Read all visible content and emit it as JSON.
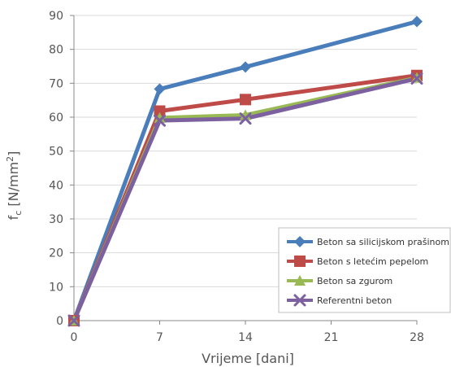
{
  "chart_data": {
    "type": "line",
    "xlabel": "Vrijeme [dani]",
    "ylabel": {
      "main": "f",
      "sub": "c",
      "unit": " [N/mm",
      "sup": "2",
      "close": "]"
    },
    "x": [
      0,
      7,
      14,
      28
    ],
    "xticks": [
      0,
      7,
      14,
      21,
      28
    ],
    "xlim": [
      0,
      28
    ],
    "yticks": [
      0,
      10,
      20,
      30,
      40,
      50,
      60,
      70,
      80,
      90
    ],
    "ylim": [
      0,
      90
    ],
    "grid": "horizontal",
    "legend_position": "bottom-right",
    "series": [
      {
        "name": "Beton sa silicijskom prašinom",
        "values": [
          0,
          68.3,
          74.8,
          88.2
        ],
        "color": "#4a7ebb",
        "marker": "diamond"
      },
      {
        "name": "Beton s letećim pepelom",
        "values": [
          0,
          61.8,
          65.2,
          72.3
        ],
        "color": "#be4b48",
        "marker": "square"
      },
      {
        "name": "Beton sa zgurom",
        "values": [
          0,
          59.8,
          60.6,
          71.6
        ],
        "color": "#98b954",
        "marker": "triangle"
      },
      {
        "name": "Referentni beton",
        "values": [
          0,
          59.0,
          59.6,
          71.4
        ],
        "color": "#7d60a0",
        "marker": "x"
      }
    ]
  }
}
